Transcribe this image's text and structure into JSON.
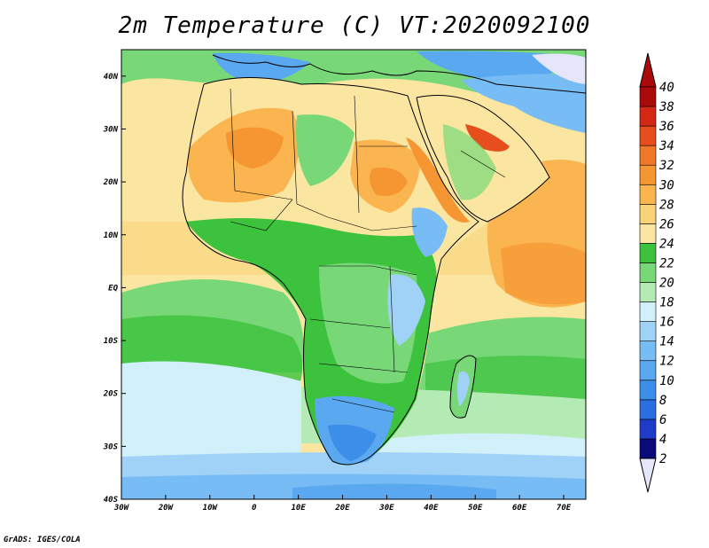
{
  "title": "2m Temperature (C) VT:2020092100",
  "credit": "GrADS: IGES/COLA",
  "map": {
    "lon_range": [
      -30,
      75
    ],
    "lat_range": [
      -40,
      45
    ],
    "x_ticks": [
      {
        "value": -30,
        "label": "30W"
      },
      {
        "value": -20,
        "label": "20W"
      },
      {
        "value": -10,
        "label": "10W"
      },
      {
        "value": 0,
        "label": "0"
      },
      {
        "value": 10,
        "label": "10E"
      },
      {
        "value": 20,
        "label": "20E"
      },
      {
        "value": 30,
        "label": "30E"
      },
      {
        "value": 40,
        "label": "40E"
      },
      {
        "value": 50,
        "label": "50E"
      },
      {
        "value": 60,
        "label": "60E"
      },
      {
        "value": 70,
        "label": "70E"
      }
    ],
    "y_ticks": [
      {
        "value": 40,
        "label": "40N"
      },
      {
        "value": 30,
        "label": "30N"
      },
      {
        "value": 20,
        "label": "20N"
      },
      {
        "value": 10,
        "label": "10N"
      },
      {
        "value": 0,
        "label": "EQ"
      },
      {
        "value": -10,
        "label": "10S"
      },
      {
        "value": -20,
        "label": "20S"
      },
      {
        "value": -30,
        "label": "30S"
      },
      {
        "value": -40,
        "label": "40S"
      }
    ]
  },
  "colorbar": {
    "levels": [
      "2",
      "4",
      "6",
      "8",
      "10",
      "12",
      "14",
      "16",
      "18",
      "20",
      "22",
      "24",
      "26",
      "28",
      "30",
      "32",
      "34",
      "36",
      "38",
      "40"
    ],
    "colors": [
      "#0a0a7a",
      "#1e3cc8",
      "#2a6ee0",
      "#3c8ee8",
      "#5aa8f0",
      "#78bcf5",
      "#a0d2f8",
      "#d2f0fa",
      "#b4eab4",
      "#78d878",
      "#3cc23c",
      "#fae6a0",
      "#fad278",
      "#fab450",
      "#f59632",
      "#f07828",
      "#e64e1e",
      "#d22814",
      "#aa0a0a"
    ],
    "low_cap_color": "#e6e6fa",
    "high_cap_color": "#aa0a0a"
  },
  "colors": {
    "ocean_warm": "#fad278",
    "ocean_mid": "#fae6a0",
    "land_green": "#3cc23c",
    "land_light_green": "#78d878",
    "desert_orange": "#fab450",
    "hot_orange": "#f59632",
    "cool_blue": "#78bcf5",
    "cold_blue": "#3c8ee8"
  }
}
